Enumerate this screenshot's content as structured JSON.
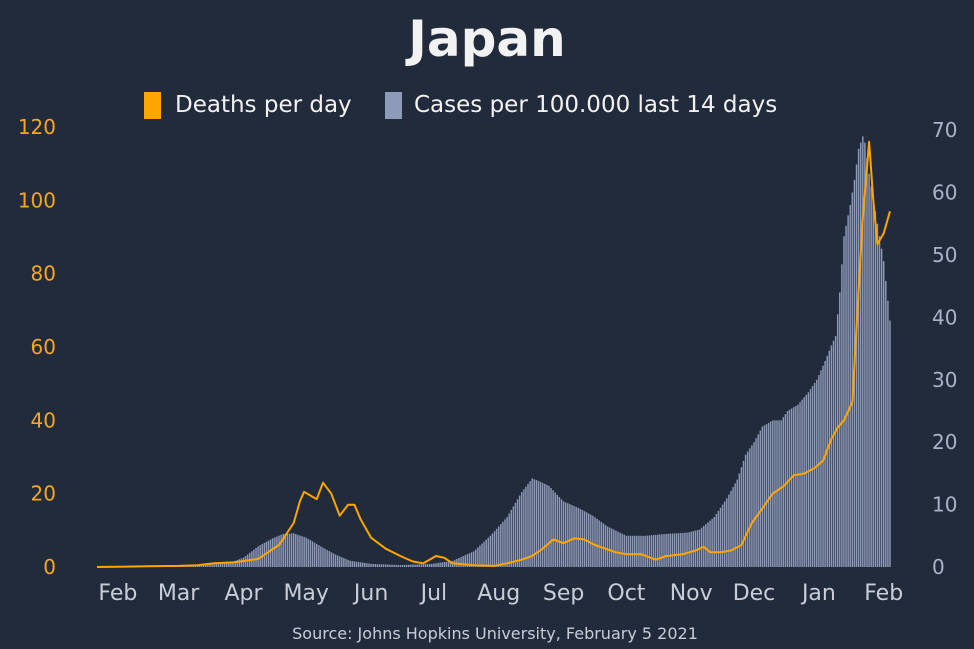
{
  "chart_data": {
    "type": "bar+line",
    "title": "Japan",
    "source": "Source: Johns Hopkins University, February 5 2021",
    "legend": {
      "position": "top-center",
      "entries": [
        {
          "label": "Deaths per day",
          "color": "#ffa500",
          "kind": "line"
        },
        {
          "label": "Cases per 100.000 last 14 days",
          "color": "#8d9ab8",
          "kind": "bar"
        }
      ]
    },
    "x_tick_labels": [
      "Feb",
      "Mar",
      "Apr",
      "May",
      "Jun",
      "Jul",
      "Aug",
      "Sep",
      "Oct",
      "Nov",
      "Dec",
      "Jan",
      "Feb"
    ],
    "x_range": [
      "2020-01-22",
      "2021-02-04"
    ],
    "y_left": {
      "ticks": [
        0,
        20,
        40,
        60,
        80,
        100,
        120
      ],
      "range": [
        0,
        120
      ],
      "color": "#f5a623"
    },
    "y_right": {
      "ticks": [
        0,
        10,
        20,
        30,
        40,
        50,
        60,
        70
      ],
      "range": [
        0,
        70.5
      ],
      "color": "#aab3c8"
    },
    "series": [
      {
        "name": "Cases per 100.000 last 14 days",
        "axis": "right",
        "points": [
          [
            "2020-01-22",
            0
          ],
          [
            "2020-02-20",
            0.1
          ],
          [
            "2020-03-10",
            0.3
          ],
          [
            "2020-03-25",
            0.6
          ],
          [
            "2020-04-01",
            1.5
          ],
          [
            "2020-04-08",
            3.3
          ],
          [
            "2020-04-15",
            4.6
          ],
          [
            "2020-04-20",
            5.3
          ],
          [
            "2020-04-25",
            5.4
          ],
          [
            "2020-05-01",
            4.7
          ],
          [
            "2020-05-08",
            3.3
          ],
          [
            "2020-05-15",
            2
          ],
          [
            "2020-05-22",
            1
          ],
          [
            "2020-06-01",
            0.5
          ],
          [
            "2020-06-15",
            0.3
          ],
          [
            "2020-06-30",
            0.5
          ],
          [
            "2020-07-10",
            1
          ],
          [
            "2020-07-20",
            2.5
          ],
          [
            "2020-07-28",
            5
          ],
          [
            "2020-08-05",
            8
          ],
          [
            "2020-08-12",
            12
          ],
          [
            "2020-08-17",
            14.2
          ],
          [
            "2020-08-20",
            13.8
          ],
          [
            "2020-08-25",
            13
          ],
          [
            "2020-09-01",
            10.5
          ],
          [
            "2020-09-08",
            9.5
          ],
          [
            "2020-09-15",
            8.2
          ],
          [
            "2020-09-22",
            6.5
          ],
          [
            "2020-10-01",
            5
          ],
          [
            "2020-10-10",
            5
          ],
          [
            "2020-10-20",
            5.3
          ],
          [
            "2020-10-30",
            5.5
          ],
          [
            "2020-11-05",
            6
          ],
          [
            "2020-11-12",
            8
          ],
          [
            "2020-11-18",
            11
          ],
          [
            "2020-11-23",
            14
          ],
          [
            "2020-11-27",
            18
          ],
          [
            "2020-12-01",
            20
          ],
          [
            "2020-12-05",
            22.5
          ],
          [
            "2020-12-10",
            23.5
          ],
          [
            "2020-12-14",
            23.5
          ],
          [
            "2020-12-17",
            25
          ],
          [
            "2020-12-22",
            26
          ],
          [
            "2020-12-27",
            28
          ],
          [
            "2020-12-31",
            30
          ],
          [
            "2021-01-04",
            33
          ],
          [
            "2021-01-07",
            35.5
          ],
          [
            "2021-01-09",
            37
          ],
          [
            "2021-01-11",
            44
          ],
          [
            "2021-01-13",
            53
          ],
          [
            "2021-01-16",
            58
          ],
          [
            "2021-01-18",
            62
          ],
          [
            "2021-01-20",
            67
          ],
          [
            "2021-01-22",
            69
          ],
          [
            "2021-01-23",
            68
          ],
          [
            "2021-01-25",
            63
          ],
          [
            "2021-01-28",
            57
          ],
          [
            "2021-02-01",
            49
          ],
          [
            "2021-02-04",
            39.5
          ]
        ]
      },
      {
        "name": "Deaths per day",
        "axis": "left",
        "points": [
          [
            "2020-01-22",
            0
          ],
          [
            "2020-02-15",
            0.2
          ],
          [
            "2020-03-01",
            0.3
          ],
          [
            "2020-03-10",
            0.5
          ],
          [
            "2020-03-18",
            1
          ],
          [
            "2020-03-28",
            1.3
          ],
          [
            "2020-04-08",
            2.2
          ],
          [
            "2020-04-18",
            6
          ],
          [
            "2020-04-25",
            12
          ],
          [
            "2020-04-28",
            18
          ],
          [
            "2020-04-30",
            20.5
          ],
          [
            "2020-05-03",
            19.5
          ],
          [
            "2020-05-06",
            18.5
          ],
          [
            "2020-05-09",
            23
          ],
          [
            "2020-05-13",
            20
          ],
          [
            "2020-05-17",
            14
          ],
          [
            "2020-05-21",
            17
          ],
          [
            "2020-05-24",
            17
          ],
          [
            "2020-05-27",
            13
          ],
          [
            "2020-06-01",
            8
          ],
          [
            "2020-06-08",
            5
          ],
          [
            "2020-06-15",
            3
          ],
          [
            "2020-06-21",
            1.5
          ],
          [
            "2020-06-26",
            1
          ],
          [
            "2020-07-02",
            3
          ],
          [
            "2020-07-06",
            2.5
          ],
          [
            "2020-07-10",
            1
          ],
          [
            "2020-07-20",
            0.5
          ],
          [
            "2020-07-30",
            0.3
          ],
          [
            "2020-08-05",
            1
          ],
          [
            "2020-08-12",
            2
          ],
          [
            "2020-08-17",
            3
          ],
          [
            "2020-08-22",
            5
          ],
          [
            "2020-08-27",
            7.5
          ],
          [
            "2020-09-01",
            6.5
          ],
          [
            "2020-09-06",
            7.8
          ],
          [
            "2020-09-11",
            7.5
          ],
          [
            "2020-09-16",
            6
          ],
          [
            "2020-09-21",
            5
          ],
          [
            "2020-09-26",
            4
          ],
          [
            "2020-10-01",
            3.5
          ],
          [
            "2020-10-08",
            3.5
          ],
          [
            "2020-10-15",
            2
          ],
          [
            "2020-10-20",
            3
          ],
          [
            "2020-10-28",
            3.5
          ],
          [
            "2020-11-03",
            4.5
          ],
          [
            "2020-11-07",
            5.5
          ],
          [
            "2020-11-10",
            4
          ],
          [
            "2020-11-15",
            4
          ],
          [
            "2020-11-20",
            4.5
          ],
          [
            "2020-11-25",
            6
          ],
          [
            "2020-11-30",
            12
          ],
          [
            "2020-12-05",
            16
          ],
          [
            "2020-12-10",
            20
          ],
          [
            "2020-12-15",
            22
          ],
          [
            "2020-12-20",
            25
          ],
          [
            "2020-12-25",
            25.5
          ],
          [
            "2020-12-30",
            27
          ],
          [
            "2021-01-03",
            29
          ],
          [
            "2021-01-07",
            35
          ],
          [
            "2021-01-10",
            38
          ],
          [
            "2021-01-13",
            40
          ],
          [
            "2021-01-17",
            45
          ],
          [
            "2021-01-20",
            75
          ],
          [
            "2021-01-22",
            95
          ],
          [
            "2021-01-25",
            116
          ],
          [
            "2021-01-27",
            100
          ],
          [
            "2021-01-29",
            88
          ],
          [
            "2021-02-01",
            91
          ],
          [
            "2021-02-04",
            97
          ]
        ]
      }
    ]
  }
}
